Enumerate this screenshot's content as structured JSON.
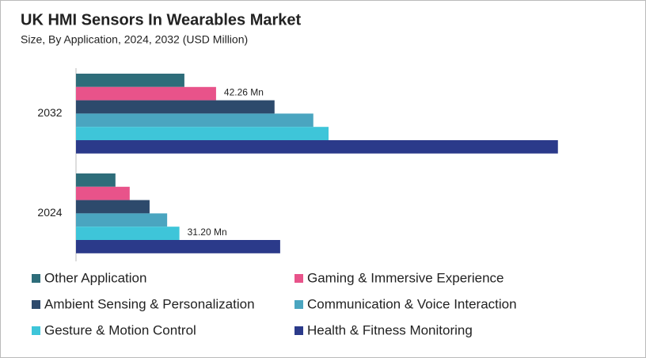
{
  "chart_data": {
    "type": "bar",
    "orientation": "horizontal",
    "title": "UK HMI Sensors In Wearables Market",
    "subtitle": "Size, By Application, 2024, 2032 (USD Million)",
    "categories": [
      "2032",
      "2024"
    ],
    "xlim": [
      0,
      150
    ],
    "series": [
      {
        "name": "Other Application",
        "color": "#2e6d7a",
        "values": [
          32.7,
          11.9
        ]
      },
      {
        "name": "Gaming & Immersive Experience",
        "color": "#e8538a",
        "values": [
          42.26,
          16.2
        ],
        "value_labels": [
          "42.26 Mn",
          null
        ]
      },
      {
        "name": "Ambient Sensing & Personalization",
        "color": "#2d4a6c",
        "values": [
          59.9,
          22.2
        ]
      },
      {
        "name": "Communication & Voice Interaction",
        "color": "#4aa5c0",
        "values": [
          71.6,
          27.5
        ]
      },
      {
        "name": "Gesture & Motion Control",
        "color": "#3ec5d9",
        "values": [
          76.2,
          31.2
        ],
        "value_labels": [
          null,
          "31.20 Mn"
        ]
      },
      {
        "name": "Health & Fitness Monitoring",
        "color": "#2b3a8a",
        "values": [
          145.4,
          61.6
        ]
      }
    ]
  }
}
